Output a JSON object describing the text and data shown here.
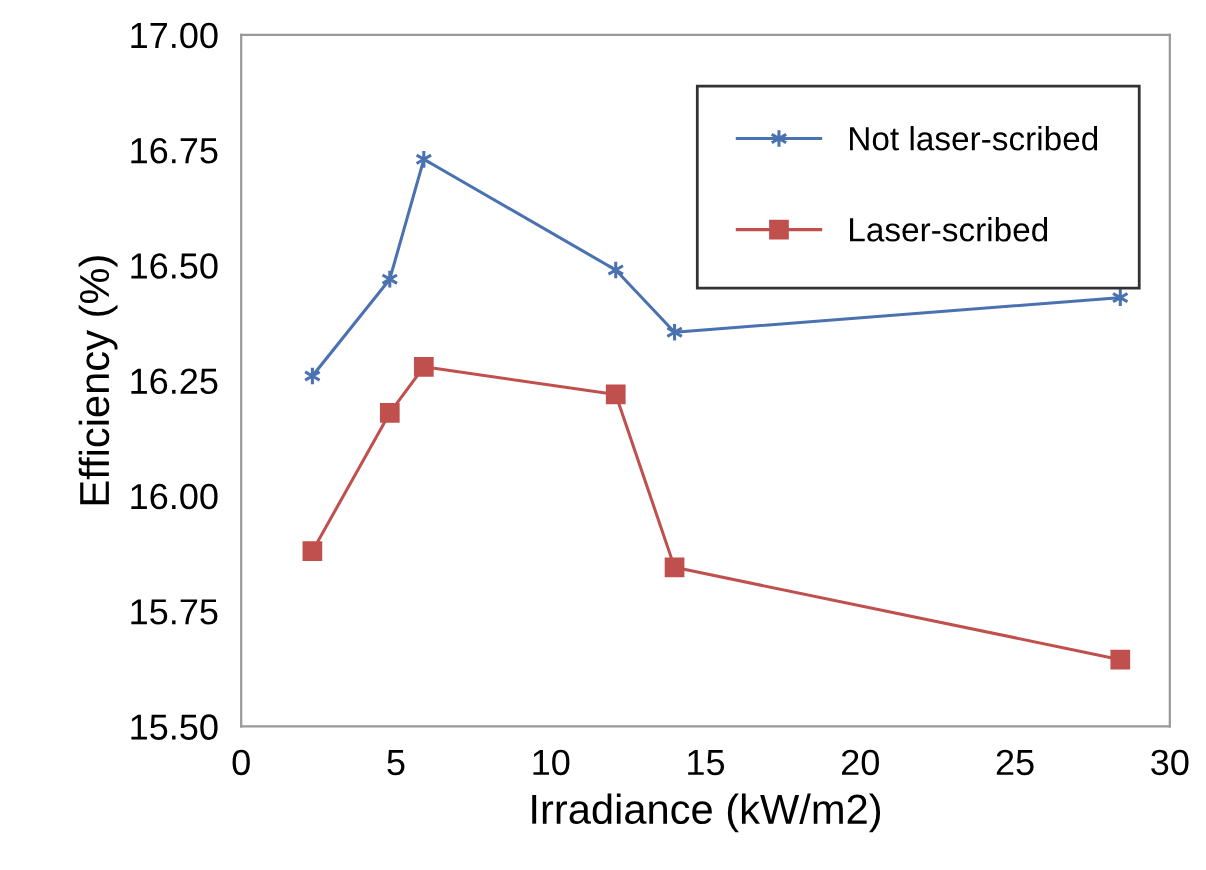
{
  "chart_data": {
    "type": "line",
    "xlabel": "Irradiance (kW/m2)",
    "ylabel": "Efficiency (%)",
    "xlim": [
      0,
      30
    ],
    "xticks": [
      0,
      5,
      10,
      15,
      20,
      25,
      30
    ],
    "ylim": [
      15.5,
      17.0
    ],
    "yticks": [
      {
        "value": 15.5,
        "label": "15.50"
      },
      {
        "value": 15.75,
        "label": "15.75"
      },
      {
        "value": 16.0,
        "label": "16.00"
      },
      {
        "value": 16.25,
        "label": "16.25"
      },
      {
        "value": 16.5,
        "label": "16.50"
      },
      {
        "value": 16.75,
        "label": "16.75"
      },
      {
        "value": 17.0,
        "label": "17.00"
      }
    ],
    "x": [
      2.3,
      4.8,
      5.9,
      12.1,
      14.0,
      28.4
    ],
    "series": [
      {
        "name": "Not laser-scribed",
        "color": "#4a72b0",
        "marker": "cross",
        "values": [
          16.26,
          16.47,
          16.73,
          16.49,
          16.355,
          16.43
        ]
      },
      {
        "name": "Laser-scribed",
        "color": "#c0504d",
        "marker": "square",
        "values": [
          15.88,
          16.18,
          16.28,
          16.22,
          15.845,
          15.645
        ]
      }
    ],
    "legend": "top right",
    "grid": false,
    "line_style": "solid"
  }
}
